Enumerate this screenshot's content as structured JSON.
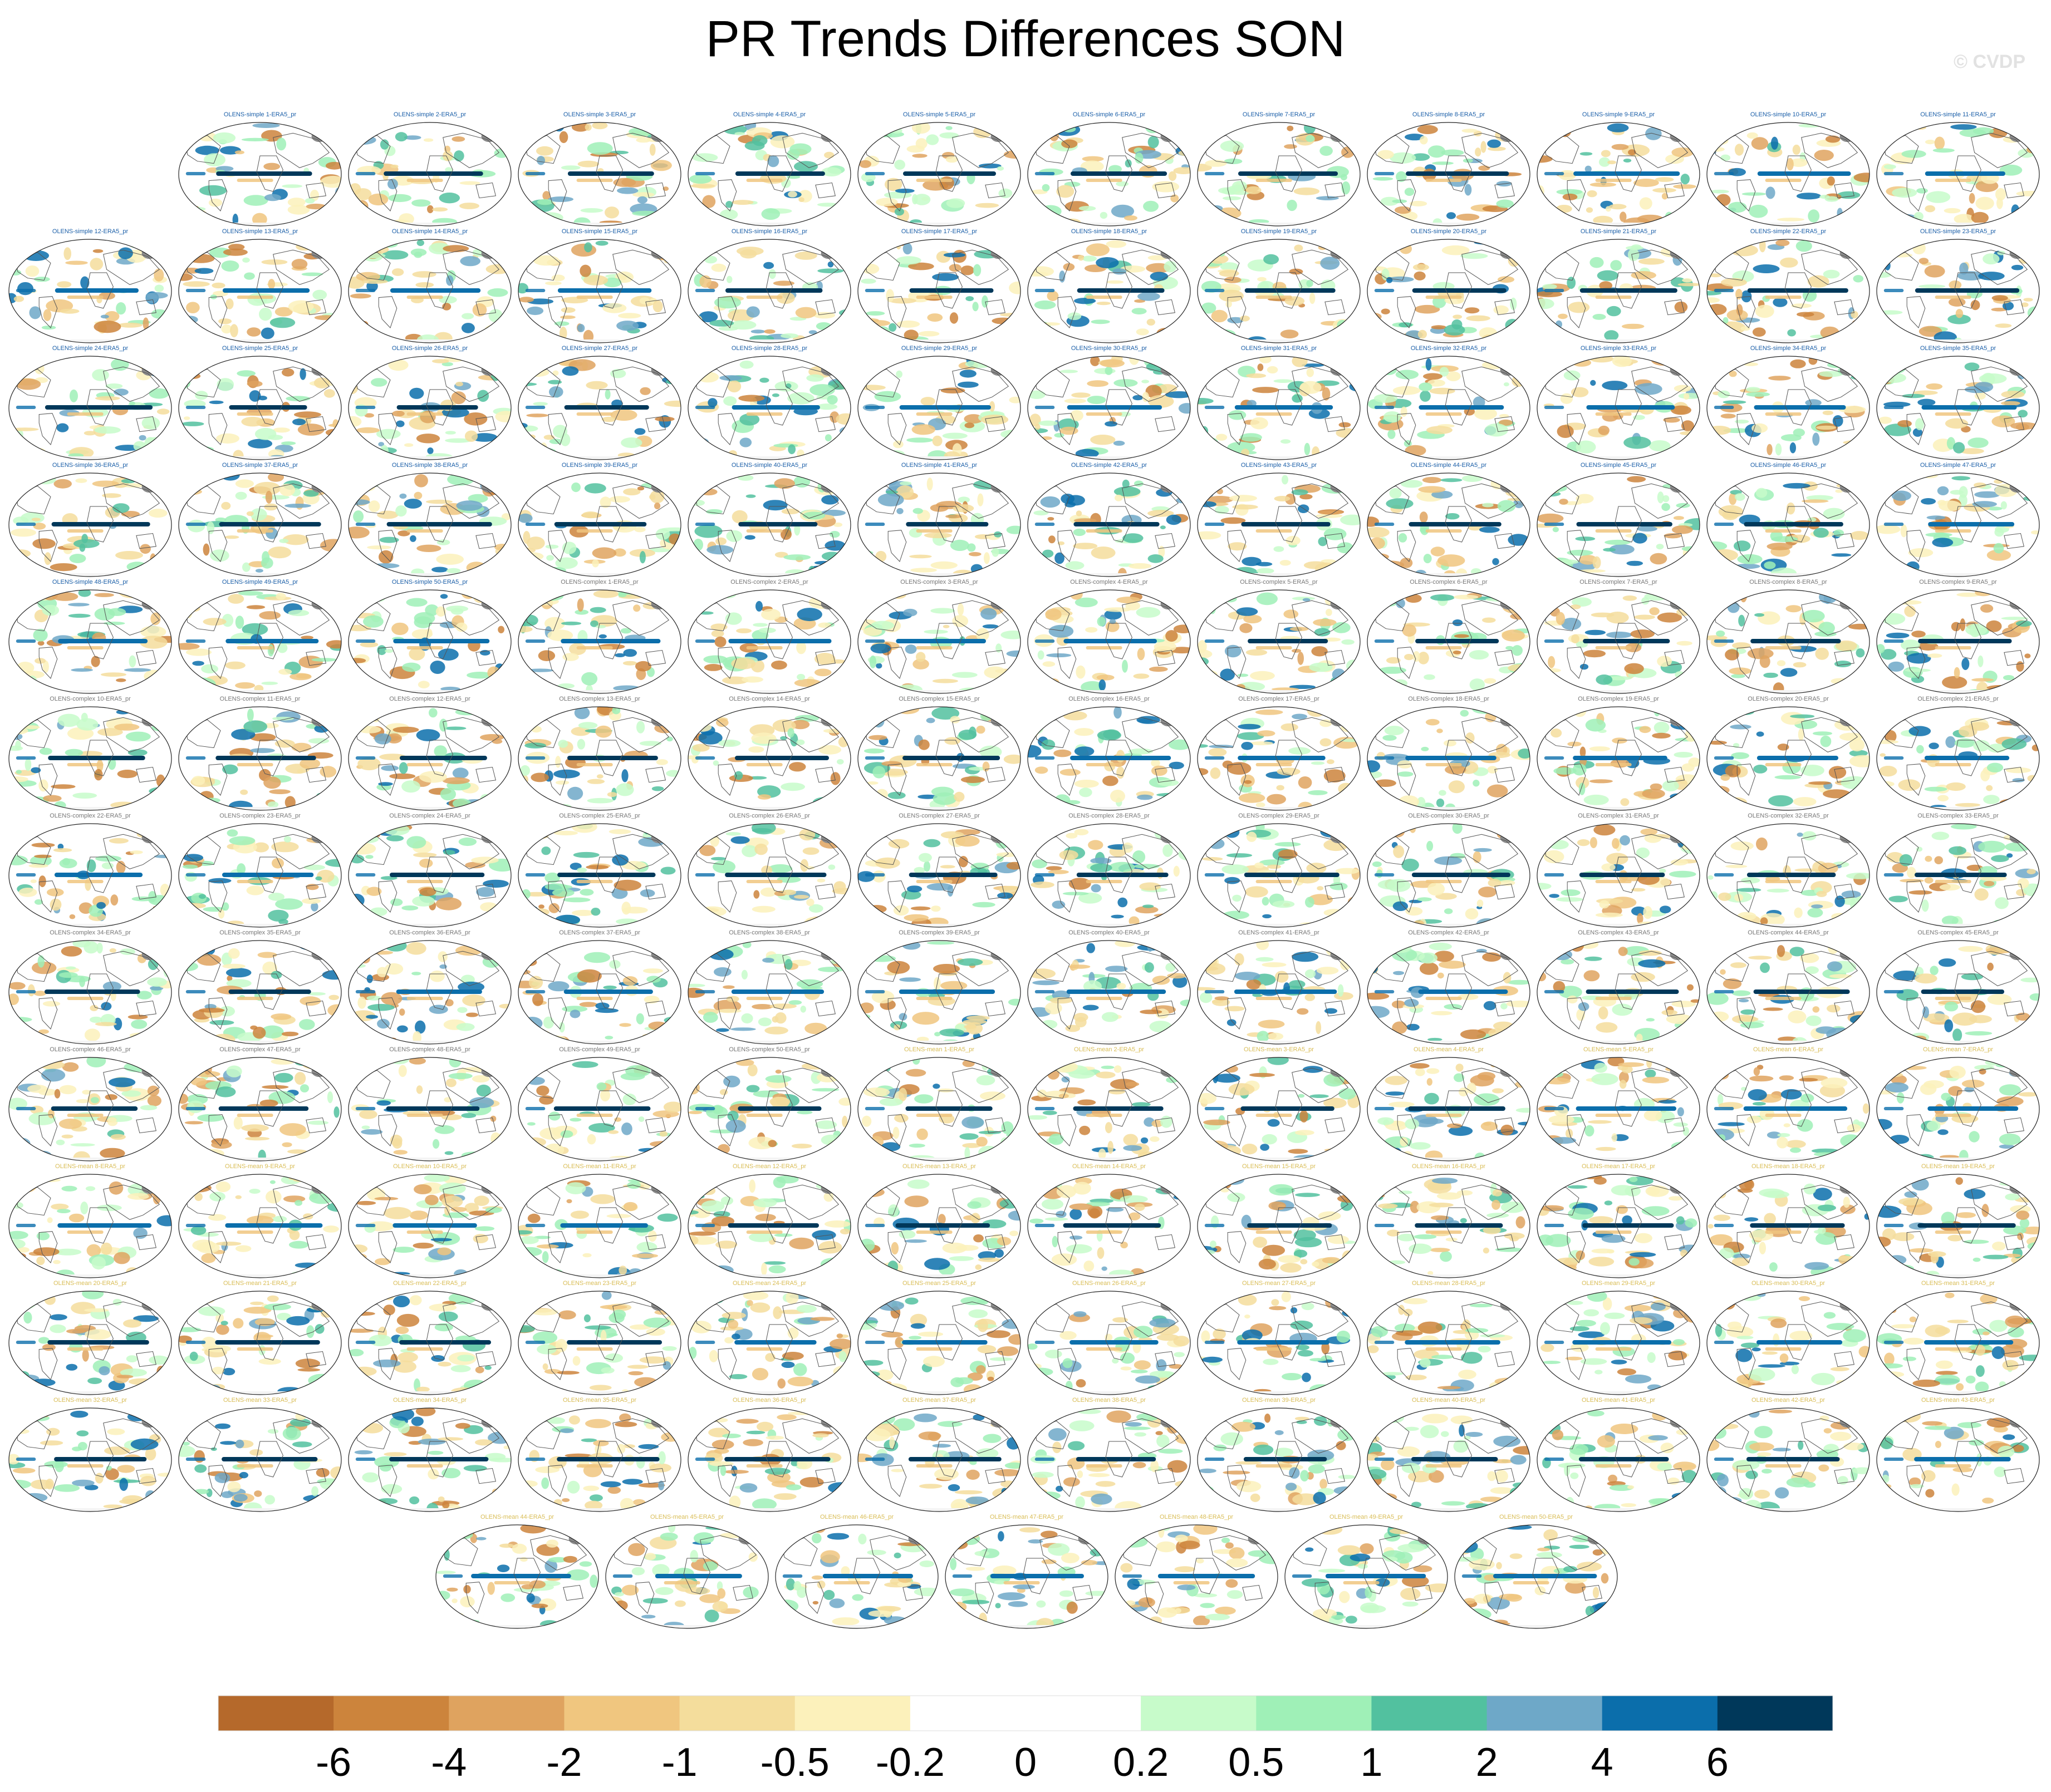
{
  "title": "PR Trends Differences SON",
  "watermark": "© CVDP",
  "chart_data": {
    "type": "heatmap",
    "title": "PR Trends Differences SON",
    "panels": [
      {
        "label": "OLENS-simple 1-ERA5_pr",
        "group": "simple"
      },
      {
        "label": "OLENS-simple 2-ERA5_pr",
        "group": "simple"
      },
      {
        "label": "OLENS-simple 3-ERA5_pr",
        "group": "simple"
      },
      {
        "label": "OLENS-simple 4-ERA5_pr",
        "group": "simple"
      },
      {
        "label": "OLENS-simple 5-ERA5_pr",
        "group": "simple"
      },
      {
        "label": "OLENS-simple 6-ERA5_pr",
        "group": "simple"
      },
      {
        "label": "OLENS-simple 7-ERA5_pr",
        "group": "simple"
      },
      {
        "label": "OLENS-simple 8-ERA5_pr",
        "group": "simple"
      },
      {
        "label": "OLENS-simple 9-ERA5_pr",
        "group": "simple"
      },
      {
        "label": "OLENS-simple 10-ERA5_pr",
        "group": "simple"
      },
      {
        "label": "OLENS-simple 11-ERA5_pr",
        "group": "simple"
      },
      {
        "label": "OLENS-simple 12-ERA5_pr",
        "group": "simple"
      },
      {
        "label": "OLENS-simple 13-ERA5_pr",
        "group": "simple"
      },
      {
        "label": "OLENS-simple 14-ERA5_pr",
        "group": "simple"
      },
      {
        "label": "OLENS-simple 15-ERA5_pr",
        "group": "simple"
      },
      {
        "label": "OLENS-simple 16-ERA5_pr",
        "group": "simple"
      },
      {
        "label": "OLENS-simple 17-ERA5_pr",
        "group": "simple"
      },
      {
        "label": "OLENS-simple 18-ERA5_pr",
        "group": "simple"
      },
      {
        "label": "OLENS-simple 19-ERA5_pr",
        "group": "simple"
      },
      {
        "label": "OLENS-simple 20-ERA5_pr",
        "group": "simple"
      },
      {
        "label": "OLENS-simple 21-ERA5_pr",
        "group": "simple"
      },
      {
        "label": "OLENS-simple 22-ERA5_pr",
        "group": "simple"
      },
      {
        "label": "OLENS-simple 23-ERA5_pr",
        "group": "simple"
      },
      {
        "label": "OLENS-simple 24-ERA5_pr",
        "group": "simple"
      },
      {
        "label": "OLENS-simple 25-ERA5_pr",
        "group": "simple"
      },
      {
        "label": "OLENS-simple 26-ERA5_pr",
        "group": "simple"
      },
      {
        "label": "OLENS-simple 27-ERA5_pr",
        "group": "simple"
      },
      {
        "label": "OLENS-simple 28-ERA5_pr",
        "group": "simple"
      },
      {
        "label": "OLENS-simple 29-ERA5_pr",
        "group": "simple"
      },
      {
        "label": "OLENS-simple 30-ERA5_pr",
        "group": "simple"
      },
      {
        "label": "OLENS-simple 31-ERA5_pr",
        "group": "simple"
      },
      {
        "label": "OLENS-simple 32-ERA5_pr",
        "group": "simple"
      },
      {
        "label": "OLENS-simple 33-ERA5_pr",
        "group": "simple"
      },
      {
        "label": "OLENS-simple 34-ERA5_pr",
        "group": "simple"
      },
      {
        "label": "OLENS-simple 35-ERA5_pr",
        "group": "simple"
      },
      {
        "label": "OLENS-simple 36-ERA5_pr",
        "group": "simple"
      },
      {
        "label": "OLENS-simple 37-ERA5_pr",
        "group": "simple"
      },
      {
        "label": "OLENS-simple 38-ERA5_pr",
        "group": "simple"
      },
      {
        "label": "OLENS-simple 39-ERA5_pr",
        "group": "simple"
      },
      {
        "label": "OLENS-simple 40-ERA5_pr",
        "group": "simple"
      },
      {
        "label": "OLENS-simple 41-ERA5_pr",
        "group": "simple"
      },
      {
        "label": "OLENS-simple 42-ERA5_pr",
        "group": "simple"
      },
      {
        "label": "OLENS-simple 43-ERA5_pr",
        "group": "simple"
      },
      {
        "label": "OLENS-simple 44-ERA5_pr",
        "group": "simple"
      },
      {
        "label": "OLENS-simple 45-ERA5_pr",
        "group": "simple"
      },
      {
        "label": "OLENS-simple 46-ERA5_pr",
        "group": "simple"
      },
      {
        "label": "OLENS-simple 47-ERA5_pr",
        "group": "simple"
      },
      {
        "label": "OLENS-simple 48-ERA5_pr",
        "group": "simple"
      },
      {
        "label": "OLENS-simple 49-ERA5_pr",
        "group": "simple"
      },
      {
        "label": "OLENS-simple 50-ERA5_pr",
        "group": "simple"
      },
      {
        "label": "OLENS-complex 1-ERA5_pr",
        "group": "complex"
      },
      {
        "label": "OLENS-complex 2-ERA5_pr",
        "group": "complex"
      },
      {
        "label": "OLENS-complex 3-ERA5_pr",
        "group": "complex"
      },
      {
        "label": "OLENS-complex 4-ERA5_pr",
        "group": "complex"
      },
      {
        "label": "OLENS-complex 5-ERA5_pr",
        "group": "complex"
      },
      {
        "label": "OLENS-complex 6-ERA5_pr",
        "group": "complex"
      },
      {
        "label": "OLENS-complex 7-ERA5_pr",
        "group": "complex"
      },
      {
        "label": "OLENS-complex 8-ERA5_pr",
        "group": "complex"
      },
      {
        "label": "OLENS-complex 9-ERA5_pr",
        "group": "complex"
      },
      {
        "label": "OLENS-complex 10-ERA5_pr",
        "group": "complex"
      },
      {
        "label": "OLENS-complex 11-ERA5_pr",
        "group": "complex"
      },
      {
        "label": "OLENS-complex 12-ERA5_pr",
        "group": "complex"
      },
      {
        "label": "OLENS-complex 13-ERA5_pr",
        "group": "complex"
      },
      {
        "label": "OLENS-complex 14-ERA5_pr",
        "group": "complex"
      },
      {
        "label": "OLENS-complex 15-ERA5_pr",
        "group": "complex"
      },
      {
        "label": "OLENS-complex 16-ERA5_pr",
        "group": "complex"
      },
      {
        "label": "OLENS-complex 17-ERA5_pr",
        "group": "complex"
      },
      {
        "label": "OLENS-complex 18-ERA5_pr",
        "group": "complex"
      },
      {
        "label": "OLENS-complex 19-ERA5_pr",
        "group": "complex"
      },
      {
        "label": "OLENS-complex 20-ERA5_pr",
        "group": "complex"
      },
      {
        "label": "OLENS-complex 21-ERA5_pr",
        "group": "complex"
      },
      {
        "label": "OLENS-complex 22-ERA5_pr",
        "group": "complex"
      },
      {
        "label": "OLENS-complex 23-ERA5_pr",
        "group": "complex"
      },
      {
        "label": "OLENS-complex 24-ERA5_pr",
        "group": "complex"
      },
      {
        "label": "OLENS-complex 25-ERA5_pr",
        "group": "complex"
      },
      {
        "label": "OLENS-complex 26-ERA5_pr",
        "group": "complex"
      },
      {
        "label": "OLENS-complex 27-ERA5_pr",
        "group": "complex"
      },
      {
        "label": "OLENS-complex 28-ERA5_pr",
        "group": "complex"
      },
      {
        "label": "OLENS-complex 29-ERA5_pr",
        "group": "complex"
      },
      {
        "label": "OLENS-complex 30-ERA5_pr",
        "group": "complex"
      },
      {
        "label": "OLENS-complex 31-ERA5_pr",
        "group": "complex"
      },
      {
        "label": "OLENS-complex 32-ERA5_pr",
        "group": "complex"
      },
      {
        "label": "OLENS-complex 33-ERA5_pr",
        "group": "complex"
      },
      {
        "label": "OLENS-complex 34-ERA5_pr",
        "group": "complex"
      },
      {
        "label": "OLENS-complex 35-ERA5_pr",
        "group": "complex"
      },
      {
        "label": "OLENS-complex 36-ERA5_pr",
        "group": "complex"
      },
      {
        "label": "OLENS-complex 37-ERA5_pr",
        "group": "complex"
      },
      {
        "label": "OLENS-complex 38-ERA5_pr",
        "group": "complex"
      },
      {
        "label": "OLENS-complex 39-ERA5_pr",
        "group": "complex"
      },
      {
        "label": "OLENS-complex 40-ERA5_pr",
        "group": "complex"
      },
      {
        "label": "OLENS-complex 41-ERA5_pr",
        "group": "complex"
      },
      {
        "label": "OLENS-complex 42-ERA5_pr",
        "group": "complex"
      },
      {
        "label": "OLENS-complex 43-ERA5_pr",
        "group": "complex"
      },
      {
        "label": "OLENS-complex 44-ERA5_pr",
        "group": "complex"
      },
      {
        "label": "OLENS-complex 45-ERA5_pr",
        "group": "complex"
      },
      {
        "label": "OLENS-complex 46-ERA5_pr",
        "group": "complex"
      },
      {
        "label": "OLENS-complex 47-ERA5_pr",
        "group": "complex"
      },
      {
        "label": "OLENS-complex 48-ERA5_pr",
        "group": "complex"
      },
      {
        "label": "OLENS-complex 49-ERA5_pr",
        "group": "complex"
      },
      {
        "label": "OLENS-complex 50-ERA5_pr",
        "group": "complex"
      },
      {
        "label": "OLENS-mean 1-ERA5_pr",
        "group": "mean"
      },
      {
        "label": "OLENS-mean 2-ERA5_pr",
        "group": "mean"
      },
      {
        "label": "OLENS-mean 3-ERA5_pr",
        "group": "mean"
      },
      {
        "label": "OLENS-mean 4-ERA5_pr",
        "group": "mean"
      },
      {
        "label": "OLENS-mean 5-ERA5_pr",
        "group": "mean"
      },
      {
        "label": "OLENS-mean 6-ERA5_pr",
        "group": "mean"
      },
      {
        "label": "OLENS-mean 7-ERA5_pr",
        "group": "mean"
      },
      {
        "label": "OLENS-mean 8-ERA5_pr",
        "group": "mean"
      },
      {
        "label": "OLENS-mean 9-ERA5_pr",
        "group": "mean"
      },
      {
        "label": "OLENS-mean 10-ERA5_pr",
        "group": "mean"
      },
      {
        "label": "OLENS-mean 11-ERA5_pr",
        "group": "mean"
      },
      {
        "label": "OLENS-mean 12-ERA5_pr",
        "group": "mean"
      },
      {
        "label": "OLENS-mean 13-ERA5_pr",
        "group": "mean"
      },
      {
        "label": "OLENS-mean 14-ERA5_pr",
        "group": "mean"
      },
      {
        "label": "OLENS-mean 15-ERA5_pr",
        "group": "mean"
      },
      {
        "label": "OLENS-mean 16-ERA5_pr",
        "group": "mean"
      },
      {
        "label": "OLENS-mean 17-ERA5_pr",
        "group": "mean"
      },
      {
        "label": "OLENS-mean 18-ERA5_pr",
        "group": "mean"
      },
      {
        "label": "OLENS-mean 19-ERA5_pr",
        "group": "mean"
      },
      {
        "label": "OLENS-mean 20-ERA5_pr",
        "group": "mean"
      },
      {
        "label": "OLENS-mean 21-ERA5_pr",
        "group": "mean"
      },
      {
        "label": "OLENS-mean 22-ERA5_pr",
        "group": "mean"
      },
      {
        "label": "OLENS-mean 23-ERA5_pr",
        "group": "mean"
      },
      {
        "label": "OLENS-mean 24-ERA5_pr",
        "group": "mean"
      },
      {
        "label": "OLENS-mean 25-ERA5_pr",
        "group": "mean"
      },
      {
        "label": "OLENS-mean 26-ERA5_pr",
        "group": "mean"
      },
      {
        "label": "OLENS-mean 27-ERA5_pr",
        "group": "mean"
      },
      {
        "label": "OLENS-mean 28-ERA5_pr",
        "group": "mean"
      },
      {
        "label": "OLENS-mean 29-ERA5_pr",
        "group": "mean"
      },
      {
        "label": "OLENS-mean 30-ERA5_pr",
        "group": "mean"
      },
      {
        "label": "OLENS-mean 31-ERA5_pr",
        "group": "mean"
      },
      {
        "label": "OLENS-mean 32-ERA5_pr",
        "group": "mean"
      },
      {
        "label": "OLENS-mean 33-ERA5_pr",
        "group": "mean"
      },
      {
        "label": "OLENS-mean 34-ERA5_pr",
        "group": "mean"
      },
      {
        "label": "OLENS-mean 35-ERA5_pr",
        "group": "mean"
      },
      {
        "label": "OLENS-mean 36-ERA5_pr",
        "group": "mean"
      },
      {
        "label": "OLENS-mean 37-ERA5_pr",
        "group": "mean"
      },
      {
        "label": "OLENS-mean 38-ERA5_pr",
        "group": "mean"
      },
      {
        "label": "OLENS-mean 39-ERA5_pr",
        "group": "mean"
      },
      {
        "label": "OLENS-mean 40-ERA5_pr",
        "group": "mean"
      },
      {
        "label": "OLENS-mean 41-ERA5_pr",
        "group": "mean"
      },
      {
        "label": "OLENS-mean 42-ERA5_pr",
        "group": "mean"
      },
      {
        "label": "OLENS-mean 43-ERA5_pr",
        "group": "mean"
      },
      {
        "label": "OLENS-mean 44-ERA5_pr",
        "group": "mean"
      },
      {
        "label": "OLENS-mean 45-ERA5_pr",
        "group": "mean"
      },
      {
        "label": "OLENS-mean 46-ERA5_pr",
        "group": "mean"
      },
      {
        "label": "OLENS-mean 47-ERA5_pr",
        "group": "mean"
      },
      {
        "label": "OLENS-mean 48-ERA5_pr",
        "group": "mean"
      },
      {
        "label": "OLENS-mean 49-ERA5_pr",
        "group": "mean"
      },
      {
        "label": "OLENS-mean 50-ERA5_pr",
        "group": "mean"
      }
    ],
    "label_colors": {
      "simple": "#1b5fa8",
      "complex": "#777777",
      "mean": "#d9bd56"
    },
    "colorbar": {
      "levels": [
        "-6",
        "-4",
        "-2",
        "-1",
        "-0.5",
        "-0.2",
        "0",
        "0.2",
        "0.5",
        "1",
        "2",
        "4",
        "6"
      ],
      "colors": [
        "#b5692b",
        "#cc843c",
        "#dfa35f",
        "#f0c67f",
        "#f4dd9c",
        "#fcf1bb",
        "#ffffff",
        "#ffffff",
        "#c7fbca",
        "#9ff0b7",
        "#52c19f",
        "#6ea8c8",
        "#0b6eab",
        "#00385a"
      ]
    },
    "map_colors": {
      "coast": "#555555",
      "land_ice": "#8a8a8a",
      "outline": "#222222"
    }
  }
}
